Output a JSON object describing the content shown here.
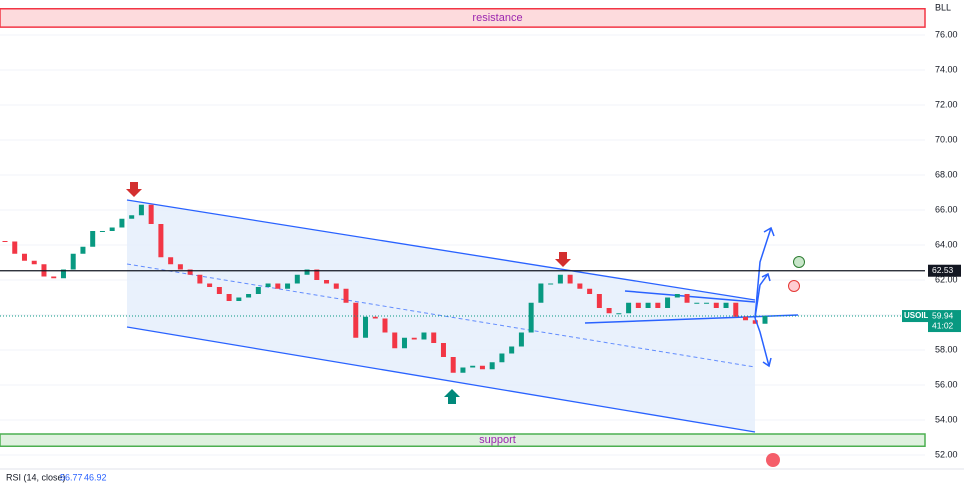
{
  "chart_data": {
    "type": "candle-line",
    "symbol": "BLL",
    "series": [
      {
        "name": "USOIL",
        "up_color": "#089981",
        "down_color": "#f23645",
        "values": [
          64.2,
          63.5,
          63.1,
          62.9,
          62.2,
          62.1,
          62.6,
          63.5,
          63.9,
          64.8,
          64.8,
          65.0,
          65.5,
          65.7,
          66.3,
          65.2,
          63.3,
          62.9,
          62.6,
          62.3,
          61.8,
          61.6,
          61.2,
          60.8,
          61.0,
          61.2,
          61.6,
          61.8,
          61.5,
          61.8,
          62.3,
          62.6,
          62.0,
          61.8,
          61.5,
          60.7,
          58.7,
          59.9,
          59.8,
          59.0,
          58.1,
          58.7,
          58.6,
          59.0,
          58.4,
          57.6,
          56.7,
          57.0,
          57.1,
          56.9,
          57.3,
          57.8,
          58.2,
          59.0,
          60.7,
          61.8,
          61.8,
          62.3,
          61.8,
          61.5,
          61.2,
          60.4,
          60.1,
          60.1,
          60.7,
          60.4,
          60.7,
          60.4,
          61.0,
          61.2,
          60.7,
          60.7,
          60.7,
          60.4,
          60.7,
          59.9,
          59.7,
          59.5,
          59.94
        ]
      }
    ],
    "ylim": [
      51.2,
      78.0
    ],
    "yticks": [
      {
        "value": 52,
        "label": "52.00"
      },
      {
        "value": 54,
        "label": "54.00"
      },
      {
        "value": 56,
        "label": "56.00"
      },
      {
        "value": 58,
        "label": "58.00"
      },
      {
        "value": 60,
        "label": "60.00"
      },
      {
        "value": 62,
        "label": "62.00"
      },
      {
        "value": 64,
        "label": "64.00"
      },
      {
        "value": 66,
        "label": "66.00"
      },
      {
        "value": 68,
        "label": "68.00"
      },
      {
        "value": 70,
        "label": "70.00"
      },
      {
        "value": 72,
        "label": "72.00"
      },
      {
        "value": 74,
        "label": "74.00"
      },
      {
        "value": 76,
        "label": "76.00"
      }
    ],
    "zones": [
      {
        "label": "resistance",
        "range": [
          76.45,
          77.5
        ],
        "color": "#f23645"
      },
      {
        "label": "support",
        "range": [
          52.5,
          53.2
        ],
        "color": "#4caf50"
      }
    ],
    "level": 62.53,
    "price_tag": {
      "symbol": "USOIL",
      "price": 59.94,
      "countdown": "41:02"
    },
    "indicator": {
      "label": "RSI (14, close)",
      "values": [
        56.77,
        46.92
      ]
    }
  }
}
